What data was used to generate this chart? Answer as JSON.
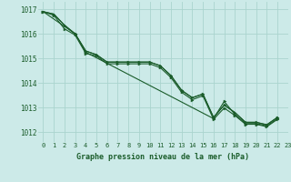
{
  "title": "Graphe pression niveau de la mer (hPa)",
  "bg_color": "#cceae8",
  "grid_color": "#aad4ce",
  "line_color": "#1a5c2a",
  "xlim": [
    -0.5,
    23
  ],
  "ylim": [
    1011.6,
    1017.3
  ],
  "yticks": [
    1012,
    1013,
    1014,
    1015,
    1016,
    1017
  ],
  "xticks": [
    0,
    1,
    2,
    3,
    4,
    5,
    6,
    7,
    8,
    9,
    10,
    11,
    12,
    13,
    14,
    15,
    16,
    17,
    18,
    19,
    20,
    21,
    22,
    23
  ],
  "line1_x": [
    0,
    1,
    2,
    3,
    4,
    5,
    6,
    7,
    8,
    9,
    10,
    11,
    12,
    13,
    14,
    15,
    16,
    17,
    18,
    19,
    20,
    21,
    22
  ],
  "line1_y": [
    1016.9,
    1016.8,
    1016.35,
    1016.0,
    1015.3,
    1015.15,
    1014.85,
    1014.85,
    1014.85,
    1014.85,
    1014.85,
    1014.7,
    1014.3,
    1013.7,
    1013.4,
    1013.55,
    1012.6,
    1013.1,
    1012.8,
    1012.4,
    1012.4,
    1012.3,
    1012.6
  ],
  "line2_x": [
    0,
    1,
    2,
    3,
    4,
    5,
    6,
    7,
    8,
    9,
    10,
    11,
    12,
    13,
    14,
    15,
    16,
    17,
    18,
    19,
    20,
    21,
    22
  ],
  "line2_y": [
    1016.9,
    1016.75,
    1016.2,
    1015.95,
    1015.2,
    1015.1,
    1014.78,
    1014.78,
    1014.78,
    1014.78,
    1014.78,
    1014.62,
    1014.22,
    1013.62,
    1013.32,
    1013.48,
    1012.52,
    1012.98,
    1012.68,
    1012.32,
    1012.32,
    1012.22,
    1012.52
  ],
  "line3_x": [
    0,
    1,
    2,
    3,
    4,
    5,
    6,
    7,
    8,
    9,
    10,
    11,
    12,
    13,
    14,
    15,
    16,
    17,
    18,
    19,
    20,
    21,
    22
  ],
  "line3_y": [
    1016.9,
    1016.8,
    1016.35,
    1016.0,
    1015.3,
    1015.15,
    1014.85,
    1014.85,
    1014.85,
    1014.85,
    1014.85,
    1014.7,
    1014.3,
    1013.7,
    1013.4,
    1013.55,
    1012.6,
    1013.1,
    1012.8,
    1012.4,
    1012.4,
    1012.3,
    1012.6
  ],
  "line4_x": [
    0,
    3,
    4,
    16,
    17,
    18,
    19,
    20,
    21,
    22
  ],
  "line4_y": [
    1016.9,
    1016.0,
    1015.25,
    1012.55,
    1013.25,
    1012.72,
    1012.35,
    1012.35,
    1012.25,
    1012.55
  ]
}
